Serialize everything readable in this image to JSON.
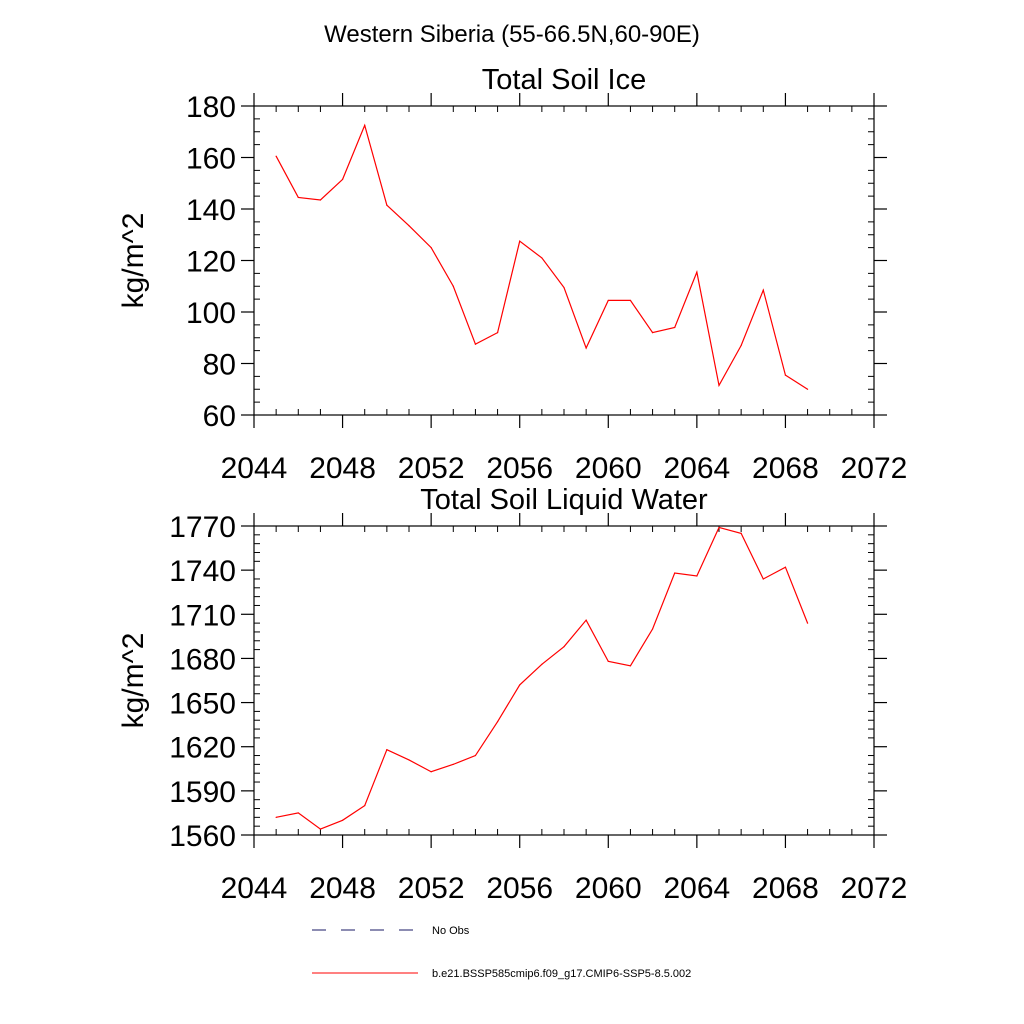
{
  "figure_title": "Western Siberia (55-66.5N,60-90E)",
  "colors": {
    "series": "#ff0000",
    "obs": "#1a1a66",
    "axis": "#000000"
  },
  "legend": {
    "placement": "bottom-center",
    "items": [
      {
        "label": "No Obs",
        "style": "dashed",
        "color": "#1a1a66"
      },
      {
        "label": "b.e21.BSSP585cmip6.f09_g17.CMIP6-SSP5-8.5.002",
        "style": "solid",
        "color": "#ff0000"
      }
    ]
  },
  "chart_data": [
    {
      "type": "line",
      "title": "Total Soil Ice",
      "ylabel": "kg/m^2",
      "xlabel": "",
      "xlim": [
        2044,
        2072
      ],
      "ylim": [
        60,
        180
      ],
      "x_ticks": [
        2044,
        2048,
        2052,
        2056,
        2060,
        2064,
        2068,
        2072
      ],
      "y_ticks": [
        60,
        80,
        100,
        120,
        140,
        160,
        180
      ],
      "x_minor_step": 1,
      "y_minor_step": 5,
      "grid": false,
      "series": [
        {
          "name": "b.e21.BSSP585cmip6.f09_g17.CMIP6-SSP5-8.5.002",
          "color": "#ff0000",
          "x": [
            2045,
            2046,
            2047,
            2048,
            2049,
            2050,
            2051,
            2052,
            2053,
            2054,
            2055,
            2056,
            2057,
            2058,
            2059,
            2060,
            2061,
            2062,
            2063,
            2064,
            2065,
            2066,
            2067,
            2068,
            2069
          ],
          "y": [
            160.5,
            144.5,
            143.5,
            151.5,
            172.5,
            141.5,
            133.5,
            125,
            110,
            87.5,
            92,
            127.5,
            121,
            109.5,
            86,
            104.5,
            104.5,
            92,
            94,
            115.5,
            71.5,
            87,
            108.5,
            75.5,
            70
          ]
        }
      ]
    },
    {
      "type": "line",
      "title": "Total Soil Liquid Water",
      "ylabel": "kg/m^2",
      "xlabel": "",
      "xlim": [
        2044,
        2072
      ],
      "ylim": [
        1560,
        1770
      ],
      "x_ticks": [
        2044,
        2048,
        2052,
        2056,
        2060,
        2064,
        2068,
        2072
      ],
      "y_ticks": [
        1560,
        1590,
        1620,
        1650,
        1680,
        1710,
        1740,
        1770
      ],
      "x_minor_step": 1,
      "y_minor_step": 6,
      "grid": false,
      "series": [
        {
          "name": "b.e21.BSSP585cmip6.f09_g17.CMIP6-SSP5-8.5.002",
          "color": "#ff0000",
          "x": [
            2045,
            2046,
            2047,
            2048,
            2049,
            2050,
            2051,
            2052,
            2053,
            2054,
            2055,
            2056,
            2057,
            2058,
            2059,
            2060,
            2061,
            2062,
            2063,
            2064,
            2065,
            2066,
            2067,
            2068,
            2069
          ],
          "y": [
            1572,
            1575,
            1564,
            1570,
            1580,
            1618,
            1611,
            1603,
            1608,
            1614,
            1637,
            1662,
            1676,
            1688,
            1706,
            1678,
            1675,
            1700,
            1738,
            1736,
            1769,
            1765,
            1734,
            1742,
            1704
          ]
        }
      ]
    }
  ]
}
